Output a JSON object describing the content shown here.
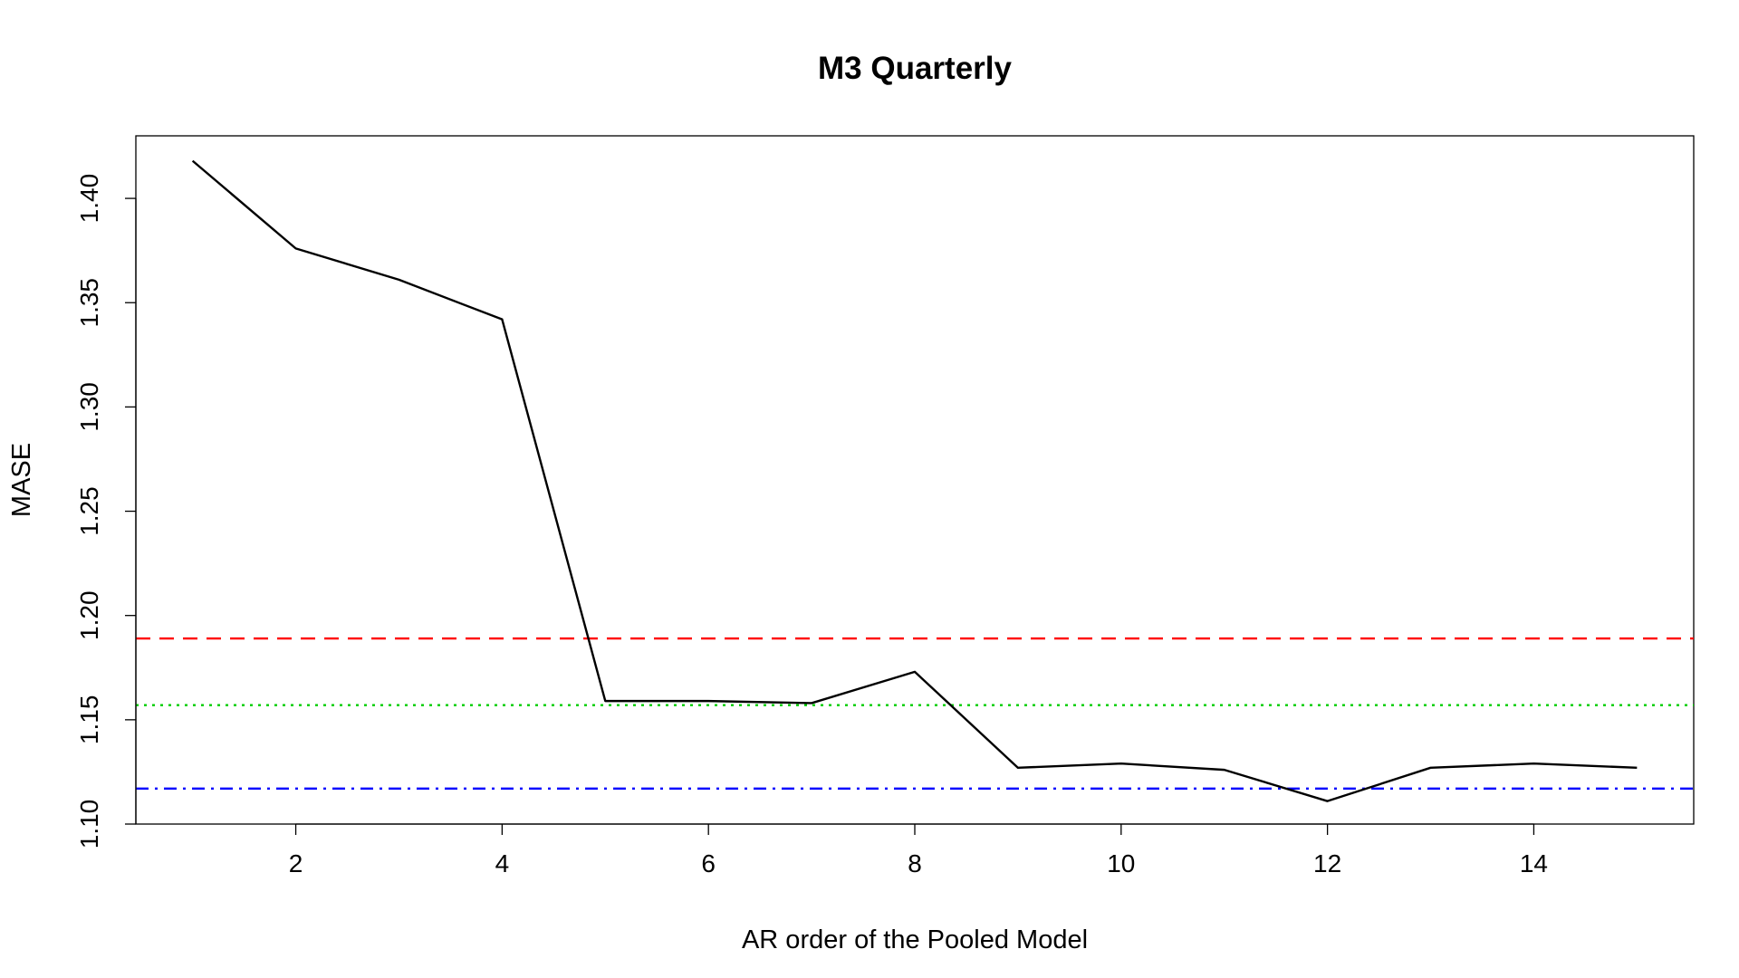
{
  "chart_data": {
    "type": "line",
    "title": "M3 Quarterly",
    "xlabel": "AR order of the Pooled Model",
    "ylabel": "MASE",
    "xlim": [
      0.45,
      15.55
    ],
    "ylim": [
      1.1,
      1.43
    ],
    "x_ticks": [
      2,
      4,
      6,
      8,
      10,
      12,
      14
    ],
    "x_tick_labels": [
      "2",
      "4",
      "6",
      "8",
      "10",
      "12",
      "14"
    ],
    "y_ticks": [
      1.1,
      1.15,
      1.2,
      1.25,
      1.3,
      1.35,
      1.4
    ],
    "y_tick_labels": [
      "1.10",
      "1.15",
      "1.20",
      "1.25",
      "1.30",
      "1.35",
      "1.40"
    ],
    "grid": false,
    "legend": "none",
    "series": [
      {
        "x": [
          1,
          2,
          3,
          4,
          5,
          6,
          7,
          8,
          9,
          10,
          11,
          12,
          13,
          14,
          15
        ],
        "values": [
          1.418,
          1.376,
          1.361,
          1.342,
          1.159,
          1.159,
          1.158,
          1.173,
          1.127,
          1.129,
          1.126,
          1.111,
          1.127,
          1.129,
          1.127
        ],
        "color": "#000000",
        "style": "solid"
      }
    ],
    "reference_lines": [
      {
        "y": 1.189,
        "color": "#ff0000",
        "style": "dashed"
      },
      {
        "y": 1.157,
        "color": "#00cd00",
        "style": "dotted"
      },
      {
        "y": 1.117,
        "color": "#0000ff",
        "style": "dashdot"
      }
    ]
  }
}
